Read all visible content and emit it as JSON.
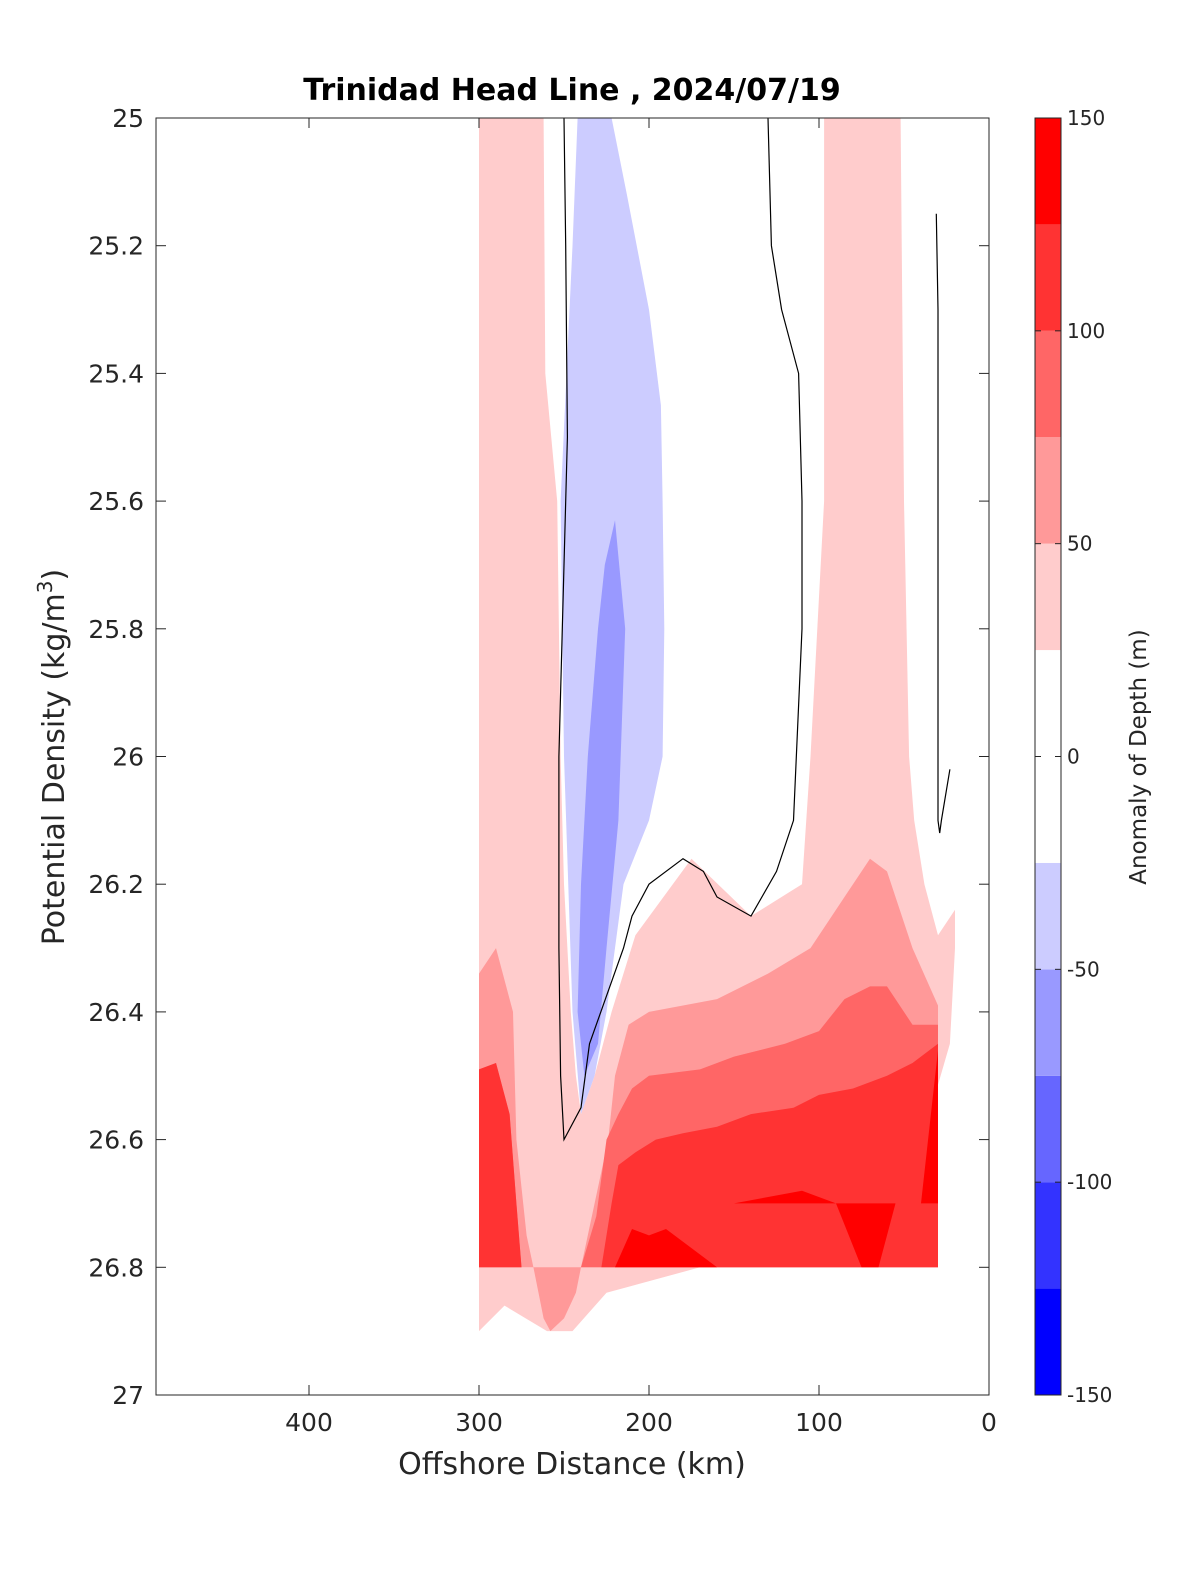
{
  "chart_data": {
    "type": "contour",
    "title": "Trinidad Head Line , 2024/07/19",
    "xlabel": "Offshore Distance (km)",
    "ylabel_main": "Potential Density (kg/m",
    "ylabel_sup": "3",
    "ylabel_end": ")",
    "xlim": [
      490,
      0
    ],
    "ylim": [
      25,
      27
    ],
    "x_reversed": true,
    "y_reversed": true,
    "x_ticks": [
      400,
      300,
      200,
      100,
      0
    ],
    "y_ticks": [
      25,
      25.2,
      25.4,
      25.6,
      25.8,
      26,
      26.2,
      26.4,
      26.6,
      26.8,
      27
    ],
    "y_tick_labels": [
      "25",
      "25.2",
      "25.4",
      "25.6",
      "25.8",
      "26",
      "26.2",
      "26.4",
      "26.6",
      "26.8",
      "27"
    ],
    "colorbar": {
      "label": "Anomaly of Depth (m)",
      "ticks": [
        150,
        100,
        50,
        0,
        -50,
        -100,
        -150
      ],
      "tick_labels": [
        "150",
        "100",
        "50",
        "0",
        "-50",
        "-100",
        "-150"
      ],
      "levels": [
        -150,
        -125,
        -100,
        -75,
        -50,
        -25,
        25,
        50,
        75,
        100,
        125,
        150
      ],
      "colors": [
        "#0000ff",
        "#3333ff",
        "#6666ff",
        "#9999ff",
        "#ccccff",
        "#ffffff",
        "#ffcccc",
        "#ff9999",
        "#ff6666",
        "#ff3333",
        "#ff0000"
      ]
    },
    "regions": [
      {
        "level": "25 to 50",
        "color": "#ffcccc",
        "shapes": [
          [
            [
              300,
              25
            ],
            [
              262,
              25
            ],
            [
              261,
              25.4
            ],
            [
              254,
              25.6
            ],
            [
              252,
              26
            ],
            [
              250,
              26.2
            ],
            [
              246,
              26.4
            ],
            [
              243,
              26.5
            ],
            [
              240,
              26.56
            ],
            [
              232,
              26.5
            ],
            [
              222,
              26.4
            ],
            [
              208,
              26.28
            ],
            [
              175,
              26.16
            ],
            [
              140,
              26.25
            ],
            [
              110,
              26.2
            ],
            [
              105,
              26.0
            ],
            [
              97,
              25.6
            ],
            [
              97,
              25
            ],
            [
              52,
              25
            ],
            [
              50,
              25.6
            ],
            [
              47,
              26.0
            ],
            [
              44,
              26.1
            ],
            [
              38,
              26.2
            ],
            [
              30,
              26.28
            ],
            [
              20,
              26.24
            ],
            [
              20,
              26.3
            ],
            [
              23,
              26.45
            ],
            [
              35,
              26.56
            ],
            [
              52,
              26.7
            ],
            [
              75,
              26.8
            ],
            [
              170,
              26.8
            ],
            [
              225,
              26.84
            ],
            [
              245,
              26.9
            ],
            [
              260,
              26.9
            ],
            [
              285,
              26.86
            ],
            [
              300,
              26.9
            ]
          ]
        ]
      },
      {
        "level": "50 to 75",
        "color": "#ff9999",
        "shapes": [
          [
            [
              300,
              26.34
            ],
            [
              290,
              26.3
            ],
            [
              280,
              26.4
            ],
            [
              278,
              26.6
            ],
            [
              272,
              26.75
            ],
            [
              268,
              26.8
            ],
            [
              265,
              26.84
            ],
            [
              262,
              26.88
            ],
            [
              258,
              26.9
            ],
            [
              250,
              26.88
            ],
            [
              243,
              26.84
            ],
            [
              240,
              26.8
            ],
            [
              232,
              26.7
            ],
            [
              224,
              26.6
            ],
            [
              220,
              26.5
            ],
            [
              212,
              26.42
            ],
            [
              200,
              26.4
            ],
            [
              160,
              26.38
            ],
            [
              130,
              26.34
            ],
            [
              105,
              26.3
            ],
            [
              90,
              26.24
            ],
            [
              80,
              26.2
            ],
            [
              70,
              26.16
            ],
            [
              60,
              26.18
            ],
            [
              45,
              26.3
            ],
            [
              30,
              26.39
            ],
            [
              30,
              26.8
            ],
            [
              120,
              26.8
            ],
            [
              300,
              26.8
            ]
          ]
        ]
      },
      {
        "level": "75 to 100",
        "color": "#ff6666",
        "shapes": [
          [
            [
              300,
              26.49
            ],
            [
              290,
              26.48
            ],
            [
              282,
              26.56
            ],
            [
              278,
              26.7
            ],
            [
              275,
              26.8
            ],
            [
              240,
              26.8
            ],
            [
              231,
              26.72
            ],
            [
              225,
              26.6
            ],
            [
              218,
              26.56
            ],
            [
              210,
              26.52
            ],
            [
              200,
              26.5
            ],
            [
              170,
              26.49
            ],
            [
              150,
              26.47
            ],
            [
              120,
              26.45
            ],
            [
              100,
              26.43
            ],
            [
              85,
              26.38
            ],
            [
              70,
              26.36
            ],
            [
              60,
              26.36
            ],
            [
              45,
              26.42
            ],
            [
              30,
              26.42
            ],
            [
              30,
              26.8
            ],
            [
              300,
              26.8
            ]
          ]
        ]
      },
      {
        "level": "100 to 125",
        "color": "#ff3333",
        "shapes": [
          [
            [
              300,
              26.49
            ],
            [
              290,
              26.48
            ],
            [
              282,
              26.56
            ],
            [
              278,
              26.7
            ],
            [
              275,
              26.8
            ],
            [
              228,
              26.8
            ],
            [
              222,
              26.7
            ],
            [
              218,
              26.64
            ],
            [
              208,
              26.62
            ],
            [
              196,
              26.6
            ],
            [
              180,
              26.59
            ],
            [
              160,
              26.58
            ],
            [
              140,
              26.56
            ],
            [
              115,
              26.55
            ],
            [
              100,
              26.53
            ],
            [
              80,
              26.52
            ],
            [
              60,
              26.5
            ],
            [
              45,
              26.48
            ],
            [
              30,
              26.45
            ],
            [
              30,
              26.8
            ],
            [
              300,
              26.8
            ]
          ]
        ]
      },
      {
        "level": "125 to 150",
        "color": "#ff0000",
        "shapes": [
          [
            [
              220,
              26.8
            ],
            [
              210,
              26.74
            ],
            [
              200,
              26.75
            ],
            [
              190,
              26.74
            ],
            [
              160,
              26.8
            ],
            [
              220,
              26.8
            ]
          ],
          [
            [
              150,
              26.7
            ],
            [
              110,
              26.68
            ],
            [
              90,
              26.7
            ],
            [
              75,
              26.8
            ],
            [
              65,
              26.8
            ],
            [
              55,
              26.7
            ],
            [
              150,
              26.7
            ]
          ],
          [
            [
              40,
              26.7
            ],
            [
              30,
              26.46
            ],
            [
              30,
              26.7
            ],
            [
              40,
              26.7
            ]
          ]
        ]
      },
      {
        "level": "-50 to -25",
        "color": "#ccccff",
        "shapes": [
          [
            [
              242,
              25
            ],
            [
              222,
              25
            ],
            [
              213,
              25.12
            ],
            [
              200,
              25.3
            ],
            [
              193,
              25.45
            ],
            [
              192,
              25.6
            ],
            [
              191,
              25.8
            ],
            [
              192,
              26.0
            ],
            [
              200,
              26.1
            ],
            [
              215,
              26.2
            ],
            [
              225,
              26.4
            ],
            [
              232,
              26.5
            ],
            [
              240,
              26.56
            ],
            [
              245,
              26.4
            ],
            [
              250,
              26.0
            ],
            [
              252,
              25.6
            ],
            [
              245,
              25.2
            ]
          ]
        ]
      },
      {
        "level": "-75 to -50",
        "color": "#9999ff",
        "shapes": [
          [
            [
              220,
              25.63
            ],
            [
              214,
              25.8
            ],
            [
              218,
              26.1
            ],
            [
              225,
              26.3
            ],
            [
              230,
              26.45
            ],
            [
              238,
              26.5
            ],
            [
              242,
              26.4
            ],
            [
              240,
              26.2
            ],
            [
              236,
              26.0
            ],
            [
              230,
              25.8
            ],
            [
              226,
              25.7
            ]
          ]
        ]
      }
    ],
    "contour_lines": [
      {
        "level": 0,
        "points": [
          [
            250,
            25
          ],
          [
            249,
            25.2
          ],
          [
            248,
            25.5
          ],
          [
            253,
            26.0
          ],
          [
            253,
            26.3
          ],
          [
            252,
            26.5
          ],
          [
            250,
            26.6
          ],
          [
            240,
            26.55
          ],
          [
            235,
            26.45
          ],
          [
            215,
            26.3
          ],
          [
            210,
            26.25
          ],
          [
            200,
            26.2
          ],
          [
            180,
            26.16
          ],
          [
            168,
            26.18
          ],
          [
            160,
            26.22
          ],
          [
            140,
            26.25
          ],
          [
            125,
            26.18
          ],
          [
            115,
            26.1
          ],
          [
            110,
            25.8
          ],
          [
            110,
            25.6
          ],
          [
            112,
            25.4
          ],
          [
            122,
            25.3
          ],
          [
            128,
            25.2
          ],
          [
            130,
            25.0
          ]
        ]
      },
      {
        "level": 0,
        "points": [
          [
            31,
            25.15
          ],
          [
            30,
            25.3
          ],
          [
            30,
            25.6
          ],
          [
            30,
            26.0
          ],
          [
            30,
            26.1
          ],
          [
            29,
            26.12
          ],
          [
            28,
            26.1
          ],
          [
            23,
            26.02
          ]
        ]
      }
    ]
  }
}
